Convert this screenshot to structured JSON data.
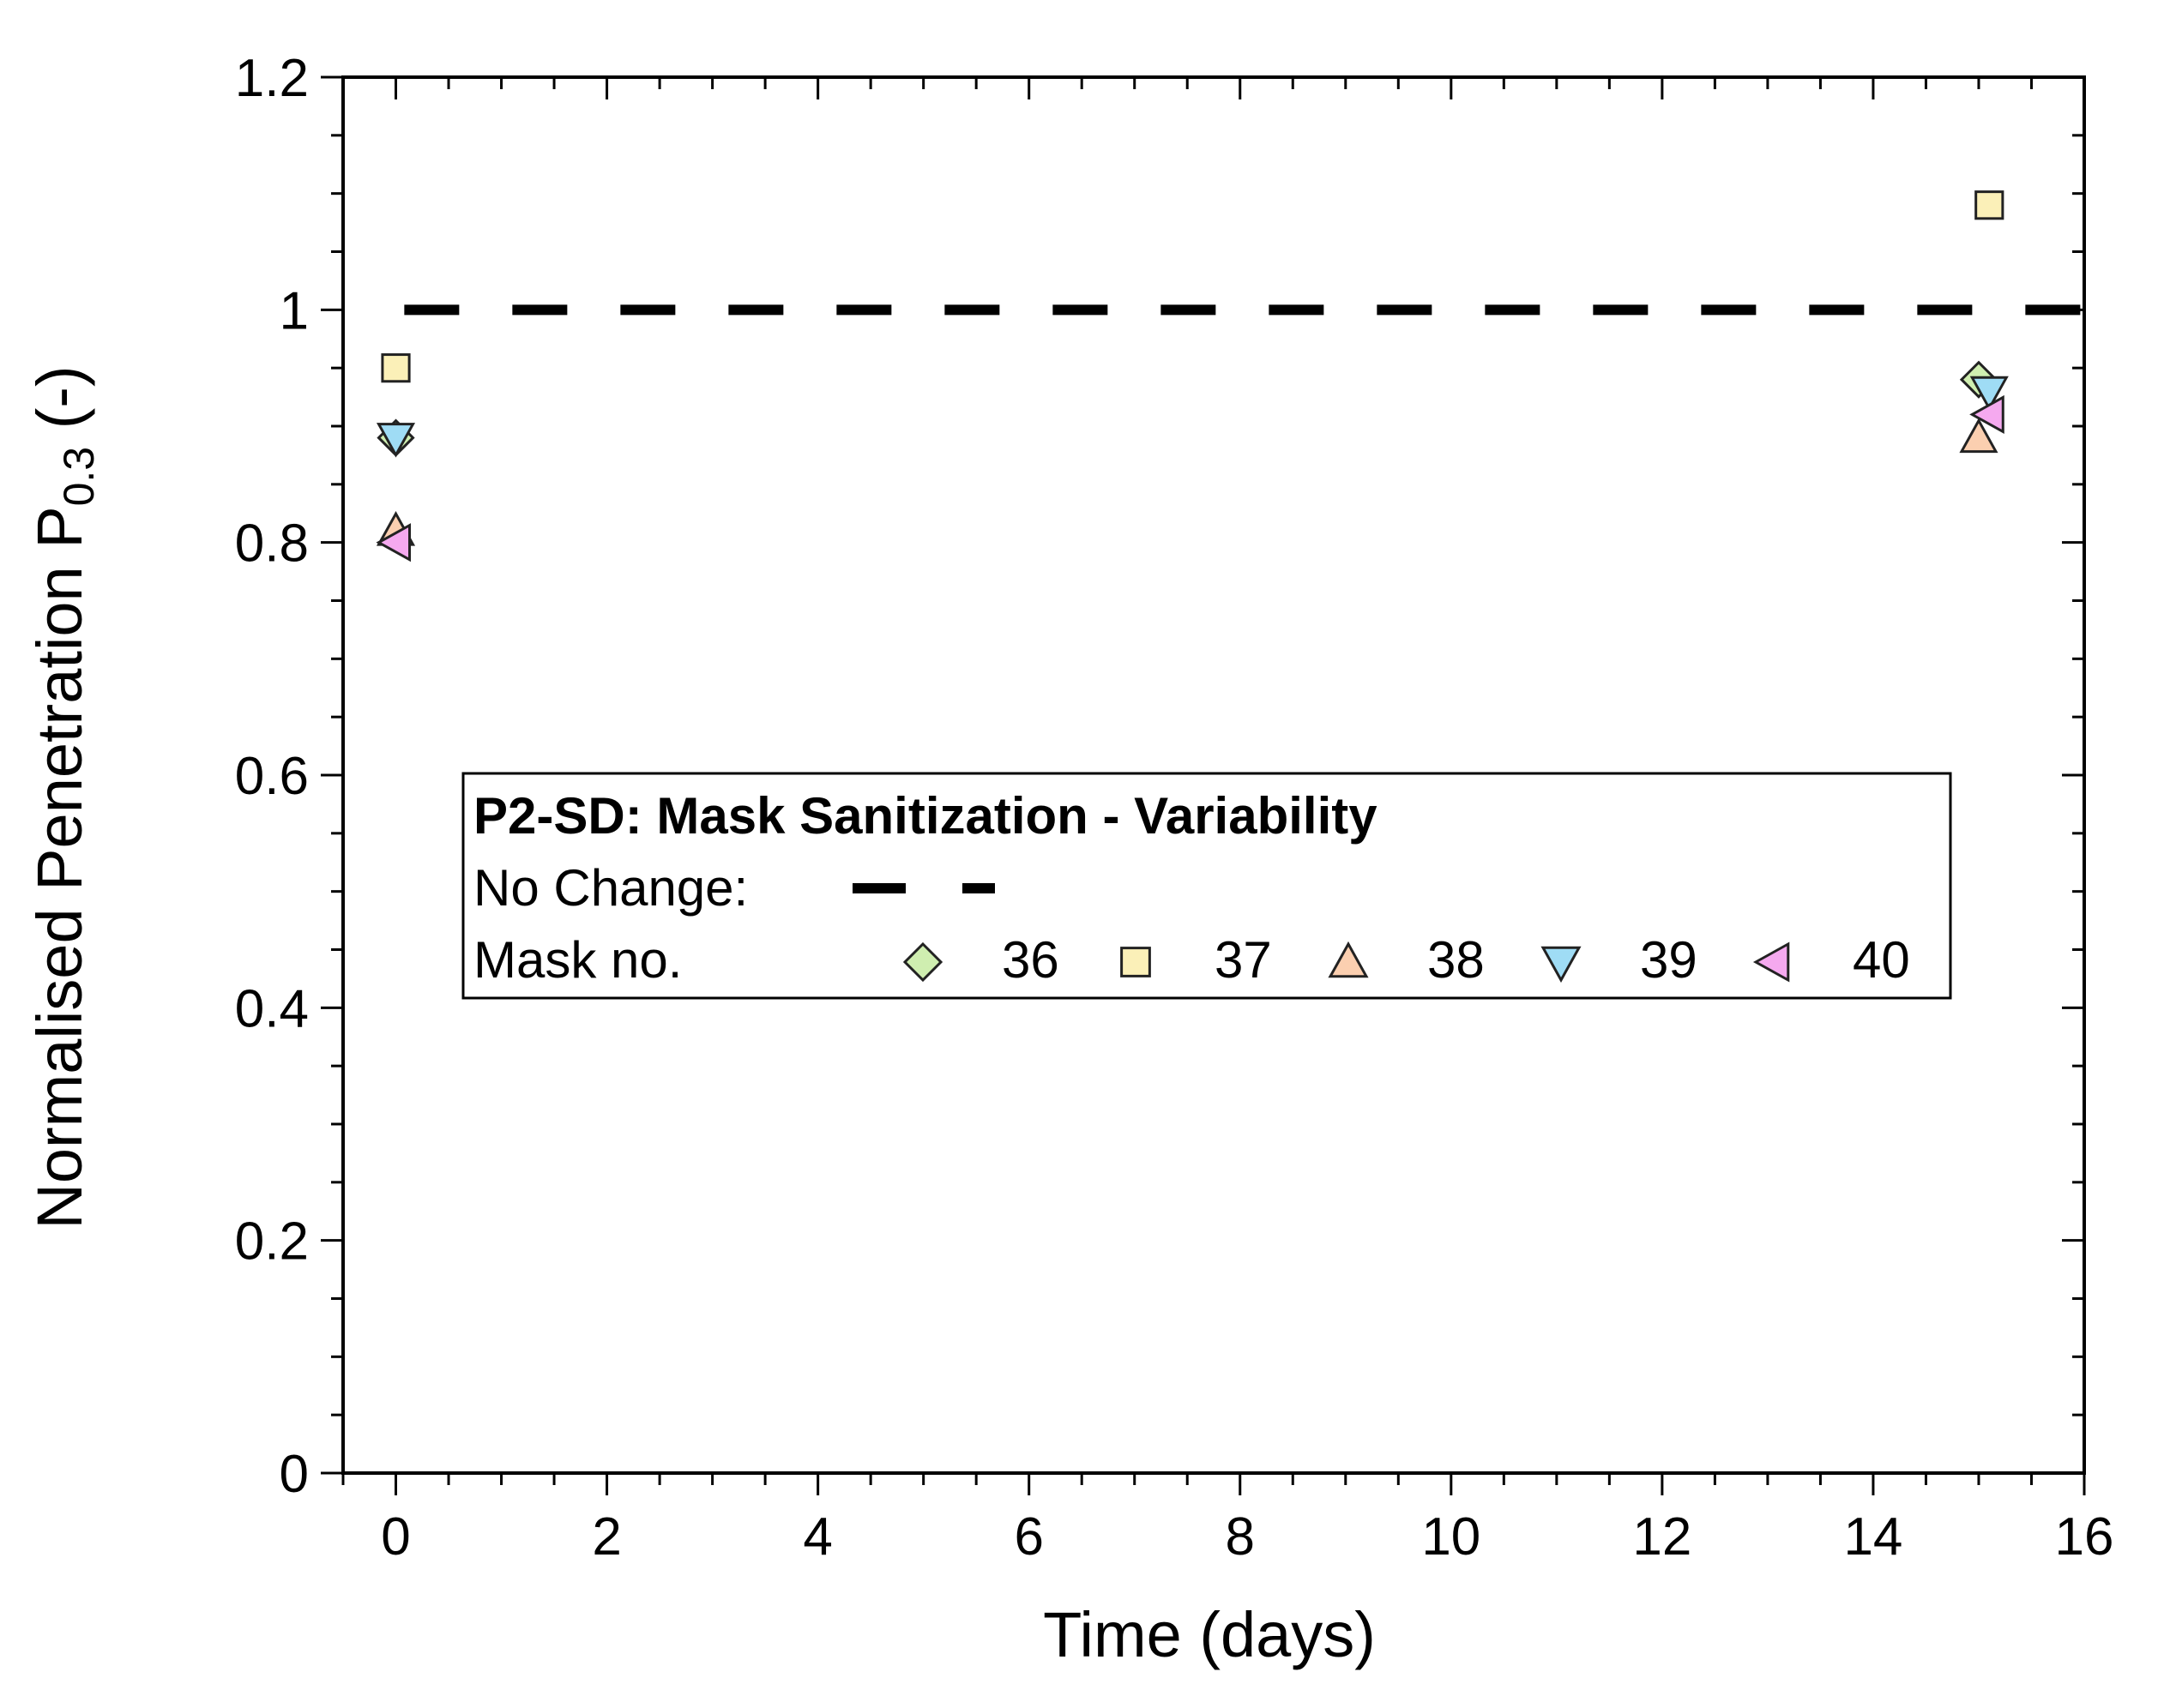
{
  "chart_data": {
    "type": "scatter",
    "xlabel": "Time (days)",
    "ylabel_main": "Normalised Penetration P",
    "ylabel_sub": "0.3",
    "ylabel_suffix": " (-)",
    "xlim": [
      -0.5,
      16
    ],
    "ylim": [
      0,
      1.2
    ],
    "x_ticks": [
      0,
      2,
      4,
      6,
      8,
      10,
      12,
      14,
      16
    ],
    "y_ticks": [
      0,
      0.2,
      0.4,
      0.6,
      0.8,
      1,
      1.2
    ],
    "y_tick_labels": [
      "0",
      "0.2",
      "0.4",
      "0.6",
      "0.8",
      "1",
      "1.2"
    ],
    "x_tick_labels": [
      "0",
      "2",
      "4",
      "6",
      "8",
      "10",
      "12",
      "14",
      "16"
    ],
    "reference_line": {
      "y": 1.0,
      "style": "dashed",
      "color": "#000000"
    },
    "series": [
      {
        "name": "36",
        "marker": "diamond",
        "color": "#cfeeb0",
        "points": [
          {
            "x": 0,
            "y": 0.89
          },
          {
            "x": 15,
            "y": 0.94
          }
        ]
      },
      {
        "name": "37",
        "marker": "square",
        "color": "#fbf0b8",
        "points": [
          {
            "x": 0,
            "y": 0.95
          },
          {
            "x": 15.1,
            "y": 1.09
          }
        ]
      },
      {
        "name": "38",
        "marker": "triangle-up",
        "color": "#fbcfb0",
        "points": [
          {
            "x": 0,
            "y": 0.81
          },
          {
            "x": 15,
            "y": 0.89
          }
        ]
      },
      {
        "name": "39",
        "marker": "triangle-down",
        "color": "#9fdcf5",
        "points": [
          {
            "x": 0,
            "y": 0.89
          },
          {
            "x": 15.1,
            "y": 0.93
          }
        ]
      },
      {
        "name": "40",
        "marker": "triangle-left",
        "color": "#f5a9ef",
        "points": [
          {
            "x": 0,
            "y": 0.8
          },
          {
            "x": 15.1,
            "y": 0.91
          }
        ]
      }
    ],
    "legend": {
      "title": "P2-SD:  Mask Sanitization - Variability",
      "no_change_label": "No Change:",
      "mask_label": "Mask no.",
      "placement": "center"
    },
    "grid": false
  }
}
